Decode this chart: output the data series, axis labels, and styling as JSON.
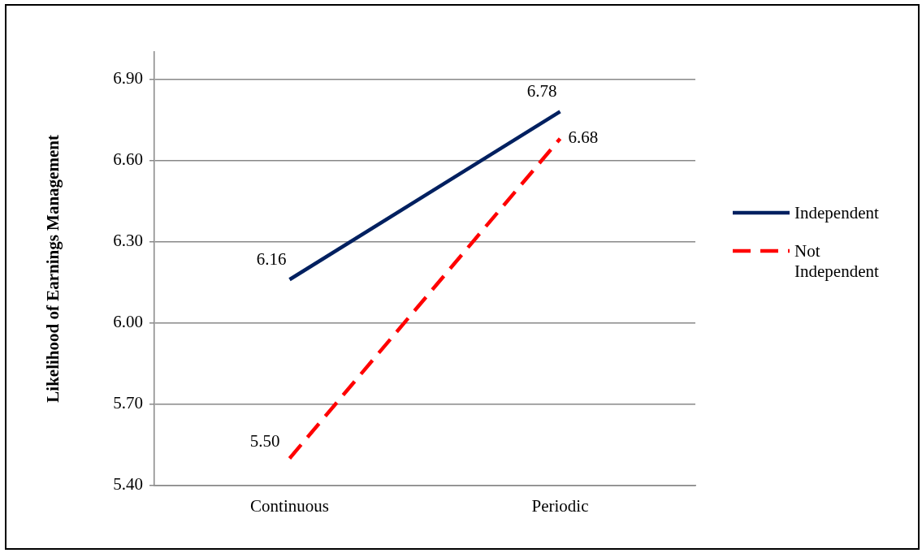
{
  "chart_data": {
    "type": "line",
    "ylabel": "Likelihood of Earnings Management",
    "categories": [
      "Continuous",
      "Periodic"
    ],
    "series": [
      {
        "name": "Independent",
        "color": "#002060",
        "values": [
          6.16,
          6.78
        ],
        "value_labels": [
          "6.16",
          "6.78"
        ],
        "line_style": "solid"
      },
      {
        "name": "Not Independent",
        "color": "#ff0000",
        "values": [
          5.5,
          6.68
        ],
        "value_labels": [
          "5.50",
          "6.68"
        ],
        "line_style": "dashed"
      }
    ],
    "ylim": [
      5.4,
      7.0
    ],
    "yticks": [
      {
        "value": 5.4,
        "label": "5.40"
      },
      {
        "value": 5.7,
        "label": "5.70"
      },
      {
        "value": 6.0,
        "label": "6.00"
      },
      {
        "value": 6.3,
        "label": "6.30"
      },
      {
        "value": 6.6,
        "label": "6.60"
      },
      {
        "value": 6.9,
        "label": "6.90"
      }
    ],
    "grid": "y",
    "legend": "right",
    "marker": "none"
  }
}
